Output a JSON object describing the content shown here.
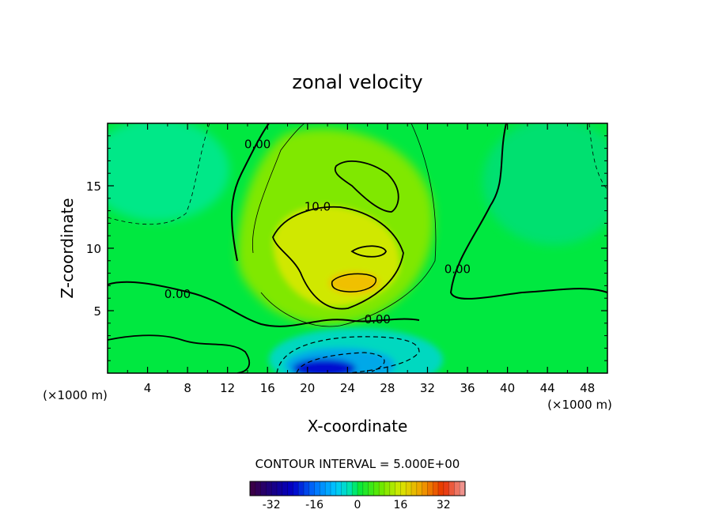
{
  "chart_data": {
    "type": "heatmap",
    "title": "zonal velocity",
    "xlabel": "X-coordinate",
    "ylabel": "Z-coordinate",
    "x_units": "(×1000 m)",
    "xlim": [
      0,
      50
    ],
    "ylim": [
      0,
      20
    ],
    "x_ticks": [
      4,
      8,
      12,
      16,
      20,
      24,
      28,
      32,
      36,
      40,
      44,
      48
    ],
    "y_ticks": [
      5,
      10,
      15
    ],
    "contour_interval_text": "CONTOUR INTERVAL = 5.000E+00",
    "colorbar": {
      "range": [
        -40,
        40
      ],
      "ticks": [
        -32,
        -16,
        0,
        16,
        32
      ]
    },
    "contour_labels": [
      {
        "text": "0.00",
        "x": 15,
        "z": 18
      },
      {
        "text": "10.0",
        "x": 21,
        "z": 13
      },
      {
        "text": "0.00",
        "x": 7,
        "z": 6
      },
      {
        "text": "0.00",
        "x": 27,
        "z": 4
      },
      {
        "text": "0.00",
        "x": 35,
        "z": 8
      }
    ],
    "field_features": [
      {
        "kind": "max",
        "x": 25,
        "z": 7,
        "value": 18
      },
      {
        "kind": "local_max",
        "x": 24,
        "z": 12.5,
        "value": 12
      },
      {
        "kind": "local_max",
        "x": 26,
        "z": 15.5,
        "value": 10
      },
      {
        "kind": "min",
        "x": 22,
        "z": 0.5,
        "value": -32
      },
      {
        "kind": "min",
        "x": 24,
        "z": 1.3,
        "value": -20
      }
    ]
  },
  "colors": {
    "background": "#00e840",
    "upper_left": "#00e888",
    "upper_right": "#00e070",
    "jet_outer": "#80e800",
    "jet_inner": "#d0e800",
    "core": "#f0c000",
    "neg_light": "#00d8c0",
    "neg_mid": "#00a8e8",
    "neg_core": "#0010d0"
  }
}
